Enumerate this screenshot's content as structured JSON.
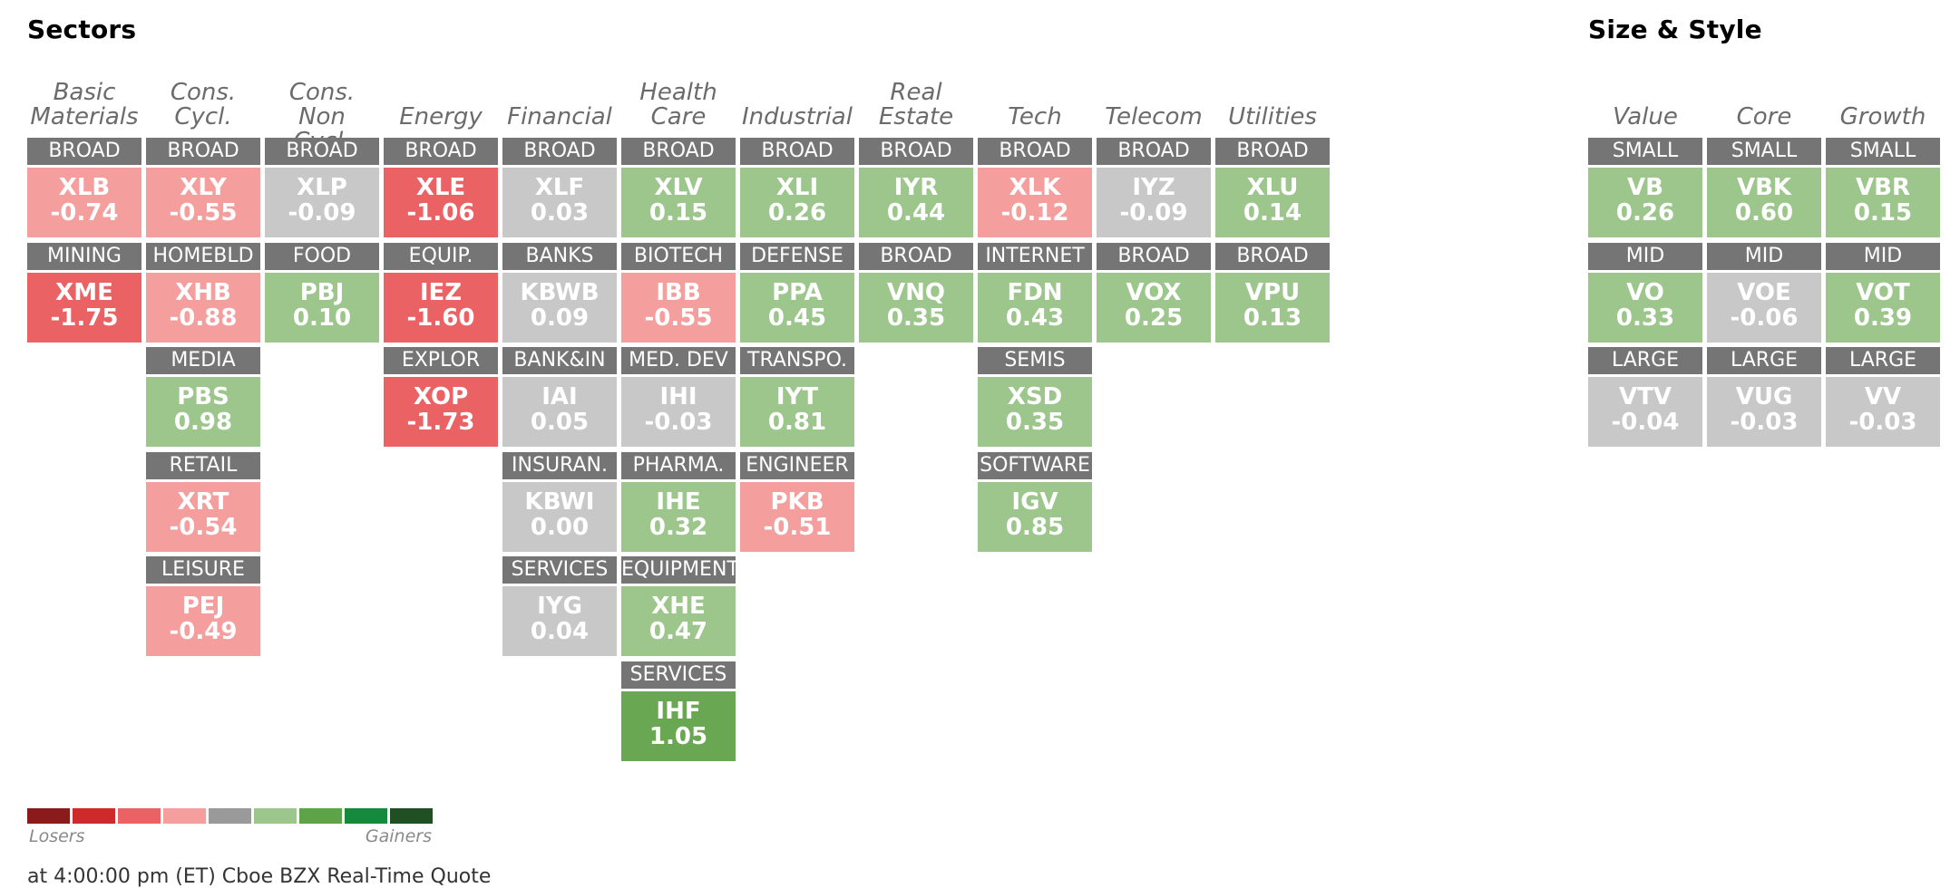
{
  "sectors_title": "Sectors",
  "style_title": "Size & Style",
  "sector_columns": [
    {
      "title": [
        "Basic",
        "Materials"
      ],
      "tiles": [
        {
          "label": "BROAD",
          "ticker": "XLB",
          "value": "-0.74",
          "color": "#f49e9e"
        },
        {
          "label": "MINING",
          "ticker": "XME",
          "value": "-1.75",
          "color": "#ea6264"
        }
      ]
    },
    {
      "title": [
        "Cons.",
        "Cycl."
      ],
      "tiles": [
        {
          "label": "BROAD",
          "ticker": "XLY",
          "value": "-0.55",
          "color": "#f49e9e"
        },
        {
          "label": "HOMEBLD",
          "ticker": "XHB",
          "value": "-0.88",
          "color": "#f49e9e"
        },
        {
          "label": "MEDIA",
          "ticker": "PBS",
          "value": "0.98",
          "color": "#9dc68d"
        },
        {
          "label": "RETAIL",
          "ticker": "XRT",
          "value": "-0.54",
          "color": "#f49e9e"
        },
        {
          "label": "LEISURE",
          "ticker": "PEJ",
          "value": "-0.49",
          "color": "#f49e9e"
        }
      ]
    },
    {
      "title": [
        "Cons. Non",
        "Cycl."
      ],
      "tiles": [
        {
          "label": "BROAD",
          "ticker": "XLP",
          "value": "-0.09",
          "color": "#c8c8c8"
        },
        {
          "label": "FOOD",
          "ticker": "PBJ",
          "value": "0.10",
          "color": "#9dc68d"
        }
      ]
    },
    {
      "title": [
        "Energy"
      ],
      "tiles": [
        {
          "label": "BROAD",
          "ticker": "XLE",
          "value": "-1.06",
          "color": "#ea6264"
        },
        {
          "label": "EQUIP.",
          "ticker": "IEZ",
          "value": "-1.60",
          "color": "#ea6264"
        },
        {
          "label": "EXPLOR",
          "ticker": "XOP",
          "value": "-1.73",
          "color": "#ea6264"
        }
      ]
    },
    {
      "title": [
        "Financial"
      ],
      "tiles": [
        {
          "label": "BROAD",
          "ticker": "XLF",
          "value": "0.03",
          "color": "#c8c8c8"
        },
        {
          "label": "BANKS",
          "ticker": "KBWB",
          "value": "0.09",
          "color": "#c8c8c8"
        },
        {
          "label": "BANK&IN",
          "ticker": "IAI",
          "value": "0.05",
          "color": "#c8c8c8"
        },
        {
          "label": "INSURAN.",
          "ticker": "KBWI",
          "value": "0.00",
          "color": "#c8c8c8"
        },
        {
          "label": "SERVICES",
          "ticker": "IYG",
          "value": "0.04",
          "color": "#c8c8c8"
        }
      ]
    },
    {
      "title": [
        "Health",
        "Care"
      ],
      "tiles": [
        {
          "label": "BROAD",
          "ticker": "XLV",
          "value": "0.15",
          "color": "#9dc68d"
        },
        {
          "label": "BIOTECH",
          "ticker": "IBB",
          "value": "-0.55",
          "color": "#f49e9e"
        },
        {
          "label": "MED. DEV",
          "ticker": "IHI",
          "value": "-0.03",
          "color": "#c8c8c8"
        },
        {
          "label": "PHARMA.",
          "ticker": "IHE",
          "value": "0.32",
          "color": "#9dc68d"
        },
        {
          "label": "EQUIPMENT",
          "ticker": "XHE",
          "value": "0.47",
          "color": "#9dc68d"
        },
        {
          "label": "SERVICES",
          "ticker": "IHF",
          "value": "1.05",
          "color": "#6aa753"
        }
      ]
    },
    {
      "title": [
        "Industrial"
      ],
      "tiles": [
        {
          "label": "BROAD",
          "ticker": "XLI",
          "value": "0.26",
          "color": "#9dc68d"
        },
        {
          "label": "DEFENSE",
          "ticker": "PPA",
          "value": "0.45",
          "color": "#9dc68d"
        },
        {
          "label": "TRANSPO.",
          "ticker": "IYT",
          "value": "0.81",
          "color": "#9dc68d"
        },
        {
          "label": "ENGINEER",
          "ticker": "PKB",
          "value": "-0.51",
          "color": "#f49e9e"
        }
      ]
    },
    {
      "title": [
        "Real",
        "Estate"
      ],
      "tiles": [
        {
          "label": "BROAD",
          "ticker": "IYR",
          "value": "0.44",
          "color": "#9dc68d"
        },
        {
          "label": "BROAD",
          "ticker": "VNQ",
          "value": "0.35",
          "color": "#9dc68d"
        }
      ]
    },
    {
      "title": [
        "Tech"
      ],
      "tiles": [
        {
          "label": "BROAD",
          "ticker": "XLK",
          "value": "-0.12",
          "color": "#f49e9e"
        },
        {
          "label": "INTERNET",
          "ticker": "FDN",
          "value": "0.43",
          "color": "#9dc68d"
        },
        {
          "label": "SEMIS",
          "ticker": "XSD",
          "value": "0.35",
          "color": "#9dc68d"
        },
        {
          "label": "SOFTWARE",
          "ticker": "IGV",
          "value": "0.85",
          "color": "#9dc68d"
        }
      ]
    },
    {
      "title": [
        "Telecom"
      ],
      "tiles": [
        {
          "label": "BROAD",
          "ticker": "IYZ",
          "value": "-0.09",
          "color": "#c8c8c8"
        },
        {
          "label": "BROAD",
          "ticker": "VOX",
          "value": "0.25",
          "color": "#9dc68d"
        }
      ]
    },
    {
      "title": [
        "Utilities"
      ],
      "tiles": [
        {
          "label": "BROAD",
          "ticker": "XLU",
          "value": "0.14",
          "color": "#9dc68d"
        },
        {
          "label": "BROAD",
          "ticker": "VPU",
          "value": "0.13",
          "color": "#9dc68d"
        }
      ]
    }
  ],
  "style_columns": [
    {
      "title": [
        "Value"
      ],
      "tiles": [
        {
          "label": "SMALL",
          "ticker": "VB",
          "value": "0.26",
          "color": "#9dc68d"
        },
        {
          "label": "MID",
          "ticker": "VO",
          "value": "0.33",
          "color": "#9dc68d"
        },
        {
          "label": "LARGE",
          "ticker": "VTV",
          "value": "-0.04",
          "color": "#c8c8c8"
        }
      ]
    },
    {
      "title": [
        "Core"
      ],
      "tiles": [
        {
          "label": "SMALL",
          "ticker": "VBK",
          "value": "0.60",
          "color": "#9dc68d"
        },
        {
          "label": "MID",
          "ticker": "VOE",
          "value": "-0.06",
          "color": "#c8c8c8"
        },
        {
          "label": "LARGE",
          "ticker": "VUG",
          "value": "-0.03",
          "color": "#c8c8c8"
        }
      ]
    },
    {
      "title": [
        "Growth"
      ],
      "tiles": [
        {
          "label": "SMALL",
          "ticker": "VBR",
          "value": "0.15",
          "color": "#9dc68d"
        },
        {
          "label": "MID",
          "ticker": "VOT",
          "value": "0.39",
          "color": "#9dc68d"
        },
        {
          "label": "LARGE",
          "ticker": "VV",
          "value": "-0.03",
          "color": "#c8c8c8"
        }
      ]
    }
  ],
  "legend": {
    "colors": [
      "#8b1a1a",
      "#cf2a2a",
      "#ea6264",
      "#f49e9e",
      "#9a9a9a",
      "#9dc68d",
      "#5da348",
      "#158a3c",
      "#1f4f22"
    ],
    "losers_label": "Losers",
    "gainers_label": "Gainers"
  },
  "footer": "at 4:00:00 pm (ET) Cboe BZX Real-Time Quote"
}
